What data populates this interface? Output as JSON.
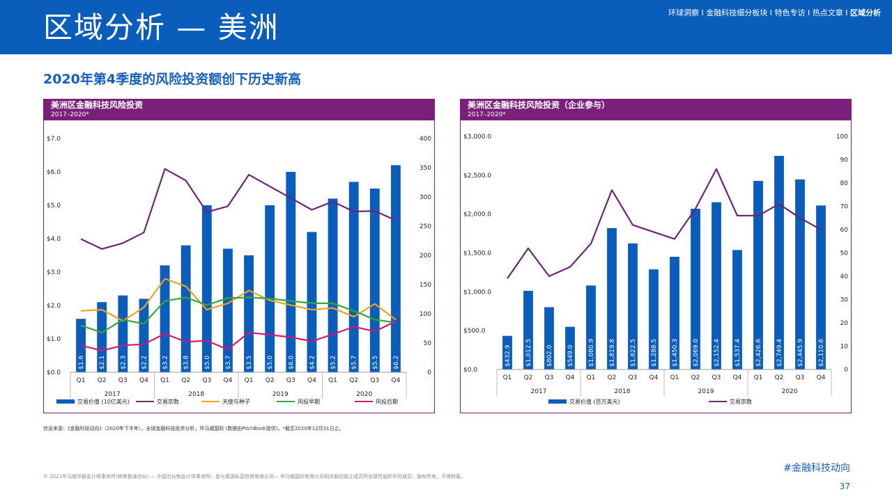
{
  "header": {
    "title": "区域分析 — 美洲",
    "nav": [
      {
        "label": "环球洞察",
        "active": false
      },
      {
        "label": "金融科技细分板块",
        "active": false
      },
      {
        "label": "特色专访",
        "active": false
      },
      {
        "label": "热点文章",
        "active": false
      },
      {
        "label": "区域分析",
        "active": true
      }
    ],
    "nav_separator": "I"
  },
  "subtitle": "2020年第4季度的风险投资额创下历史新高",
  "chart_data": [
    {
      "type": "bar",
      "title": "美洲区金融科技风险投资",
      "subtitle": "2017–2020*",
      "categories": [
        "Q1",
        "Q2",
        "Q3",
        "Q4",
        "Q1",
        "Q2",
        "Q3",
        "Q4",
        "Q1",
        "Q2",
        "Q3",
        "Q4",
        "Q1",
        "Q2",
        "Q3",
        "Q4"
      ],
      "year_groups": [
        "2017",
        "2018",
        "2019",
        "2020"
      ],
      "left_axis": {
        "ylim": [
          0,
          7
        ],
        "ticks": [
          "$0.0",
          "$1.0",
          "$2.0",
          "$3.0",
          "$4.0",
          "$5.0",
          "$6.0",
          "$7.0"
        ]
      },
      "right_axis": {
        "ylim": [
          0,
          400
        ],
        "ticks": [
          "0",
          "50",
          "100",
          "150",
          "200",
          "250",
          "300",
          "350",
          "400"
        ]
      },
      "bar_series": {
        "name": "交易价值 (10亿美元)",
        "color": "#0a5dba",
        "values": [
          1.6,
          2.1,
          2.3,
          2.2,
          3.2,
          3.8,
          5.0,
          3.7,
          3.5,
          5.0,
          6.0,
          4.2,
          5.2,
          5.7,
          5.5,
          6.2
        ],
        "labels": [
          "$1.6",
          "$2.1",
          "$2.3",
          "$2.2",
          "$3.2",
          "$3.8",
          "$5.0",
          "$3.7",
          "$3.5",
          "$5.0",
          "$6.0",
          "$4.2",
          "$5.2",
          "$5.7",
          "$5.5",
          "$6.2"
        ]
      },
      "line_series": [
        {
          "name": "交易宗数",
          "color": "#6b2574",
          "axis": "right",
          "values": [
            228,
            211,
            221,
            239,
            348,
            328,
            274,
            284,
            338,
            318,
            298,
            278,
            292,
            275,
            276,
            260
          ]
        },
        {
          "name": "天使与种子",
          "color": "#f0a020",
          "axis": "right",
          "values": [
            105,
            107,
            88,
            111,
            160,
            147,
            107,
            118,
            140,
            123,
            115,
            107,
            110,
            95,
            117,
            90
          ]
        },
        {
          "name": "风投早期",
          "color": "#3aa33a",
          "axis": "right",
          "values": [
            80,
            68,
            90,
            83,
            122,
            128,
            115,
            127,
            128,
            126,
            122,
            118,
            118,
            105,
            90,
            85
          ]
        },
        {
          "name": "风投后期",
          "color": "#d4157a",
          "axis": "right",
          "values": [
            46,
            37,
            46,
            48,
            66,
            52,
            54,
            39,
            68,
            64,
            60,
            53,
            65,
            78,
            70,
            87
          ]
        }
      ]
    },
    {
      "type": "bar",
      "title": "美洲区金融科技风险投资（企业参与）",
      "subtitle": "2017–2020*",
      "categories": [
        "Q1",
        "Q2",
        "Q3",
        "Q4",
        "Q1",
        "Q2",
        "Q3",
        "Q4",
        "Q1",
        "Q2",
        "Q3",
        "Q4",
        "Q1",
        "Q2",
        "Q3",
        "Q4"
      ],
      "year_groups": [
        "2017",
        "2018",
        "2019",
        "2020"
      ],
      "left_axis": {
        "ylim": [
          0,
          3000
        ],
        "ticks": [
          "$0.0",
          "$500.0",
          "$1,000.0",
          "$1,500.0",
          "$2,000.0",
          "$2,500.0",
          "$3,000.0"
        ]
      },
      "right_axis": {
        "ylim": [
          0,
          100
        ],
        "ticks": [
          "0",
          "10",
          "20",
          "30",
          "40",
          "50",
          "60",
          "70",
          "80",
          "90",
          "100"
        ]
      },
      "bar_series": {
        "name": "交易价值 (百万美元)",
        "color": "#0a5dba",
        "values": [
          432.9,
          1012.5,
          802.0,
          549.0,
          1080.9,
          1819.8,
          1622.5,
          1288.5,
          1450.3,
          2069.0,
          2152.4,
          1537.4,
          2426.6,
          2749.4,
          2445.9,
          2110.6
        ],
        "labels": [
          "$432.9",
          "$1,012.5",
          "$802.0",
          "$549.0",
          "$1,080.9",
          "$1,819.8",
          "$1,622.5",
          "$1,288.5",
          "$1,450.3",
          "$2,069.0",
          "$2,152.4",
          "$1,537.4",
          "$2,426.6",
          "$2,749.4",
          "$2,445.9",
          "$2,110.6"
        ]
      },
      "line_series": [
        {
          "name": "交易宗数",
          "color": "#6b2574",
          "axis": "right",
          "values": [
            39,
            52,
            40,
            44,
            54,
            77,
            62,
            59,
            56,
            69,
            86,
            66,
            66,
            71,
            65,
            60
          ]
        }
      ]
    }
  ],
  "footer": {
    "source": "信息来源：《金融科技动向》（2020年下半年），全球金融科技投资分析，毕马威国际 (数据由PitchBook提供)，*截至2020年12月31日止。",
    "copyright": "© 2021毕马威华振会计师事务所(特殊普通合伙) — 中国合伙制会计师事务所，是与英国私营担保有限公司— 毕马威国际有限公司相关联的独立成员所全球性组织中的成员。版权所有，不得转载。",
    "hashtag": "#金融科技动向",
    "page_number": "37"
  }
}
